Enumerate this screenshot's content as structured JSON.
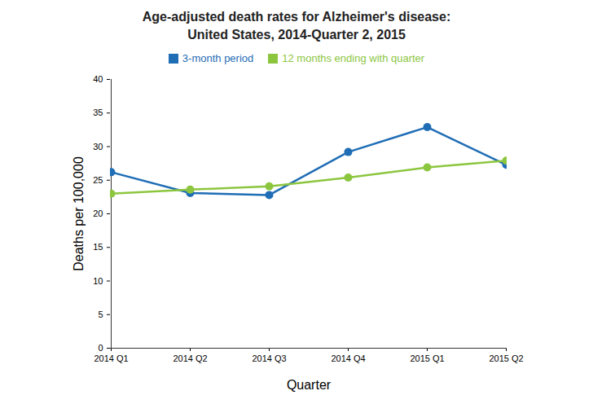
{
  "chart_data": {
    "type": "line",
    "title": "Age-adjusted death rates for Alzheimer's disease:",
    "subtitle": "United States, 2014-Quarter 2, 2015",
    "x_label": "Quarter",
    "y_label": "Deaths per 100,000",
    "categories": [
      "2014 Q1",
      "2014 Q2",
      "2014 Q3",
      "2014 Q4",
      "2015 Q1",
      "2015 Q2"
    ],
    "series": [
      {
        "name": "3-month period",
        "color": "#1f6db5",
        "marker": "circle",
        "values": [
          26.2,
          23.1,
          22.8,
          29.2,
          32.9,
          27.3
        ]
      },
      {
        "name": "12 months ending with quarter",
        "color": "#8cc63f",
        "marker": "circle",
        "values": [
          23.0,
          23.6,
          24.1,
          25.4,
          26.9,
          27.9
        ]
      }
    ],
    "ylim": [
      0,
      40
    ],
    "yticks": [
      0,
      5,
      10,
      15,
      20,
      25,
      30,
      35,
      40
    ],
    "grid": false,
    "legend": "top"
  }
}
